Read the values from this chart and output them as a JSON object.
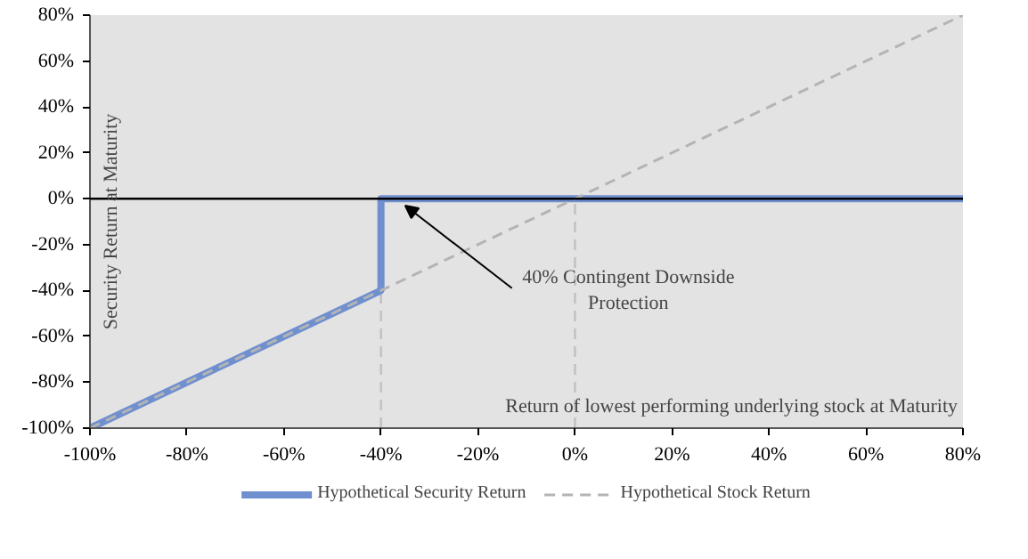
{
  "chart_data": {
    "type": "line",
    "xlabel": "Return of lowest performing underlying stock at Maturity",
    "ylabel": "Security Return at Maturity",
    "series": [
      {
        "name": "Hypothetical Security Return",
        "color": "#6f8fcf",
        "x": [
          -100,
          -40,
          -40,
          80
        ],
        "values": [
          -100,
          -40,
          0,
          0
        ],
        "line_style": "solid"
      },
      {
        "name": "Hypothetical Stock Return",
        "color": "#b4b4b4",
        "x": [
          -100,
          80
        ],
        "values": [
          -100,
          80
        ],
        "line_style": "dashed"
      }
    ],
    "xlim": [
      -100,
      80
    ],
    "ylim": [
      -100,
      80
    ],
    "xticks": [
      {
        "value": -100,
        "label": "-100%"
      },
      {
        "value": -80,
        "label": "-80%"
      },
      {
        "value": -60,
        "label": "-60%"
      },
      {
        "value": -40,
        "label": "-40%"
      },
      {
        "value": -20,
        "label": "-20%"
      },
      {
        "value": 0,
        "label": "0%"
      },
      {
        "value": 20,
        "label": "20%"
      },
      {
        "value": 40,
        "label": "40%"
      },
      {
        "value": 60,
        "label": "60%"
      },
      {
        "value": 80,
        "label": "80%"
      }
    ],
    "yticks": [
      {
        "value": -100,
        "label": "-100%"
      },
      {
        "value": -80,
        "label": "-80%"
      },
      {
        "value": -60,
        "label": "-60%"
      },
      {
        "value": -40,
        "label": "-40%"
      },
      {
        "value": -20,
        "label": "-20%"
      },
      {
        "value": 0,
        "label": "0%"
      },
      {
        "value": 20,
        "label": "20%"
      },
      {
        "value": 40,
        "label": "40%"
      },
      {
        "value": 60,
        "label": "60%"
      },
      {
        "value": 80,
        "label": "80%"
      }
    ],
    "ref_lines": [
      {
        "axis": "y",
        "value": 0,
        "color": "#000000",
        "line_style": "solid"
      },
      {
        "axis": "x",
        "value": -40,
        "color": "#c0c0c0",
        "line_style": "dashed"
      },
      {
        "axis": "x",
        "value": 0,
        "color": "#c0c0c0",
        "line_style": "dashed"
      }
    ],
    "annotations": [
      {
        "text": "40% Contingent Downside Protection",
        "x": -35,
        "y": -3
      }
    ],
    "grid": false,
    "legend": "bottom",
    "marker": "none"
  }
}
